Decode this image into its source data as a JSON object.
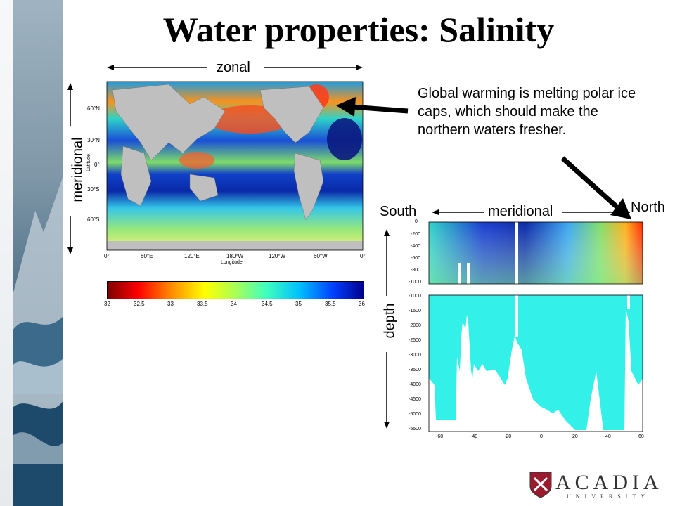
{
  "slide": {
    "title": "Water properties: Salinity",
    "annotation": "Global warming is melting polar ice caps, which should make the northern waters fresher."
  },
  "map": {
    "zonal_label": "zonal",
    "meridional_label": "meridional",
    "lat_axis_label": "Latitude",
    "lon_axis_label": "Longitude",
    "lat_ticks": [
      "60°N",
      "30°N",
      "0°",
      "30°S",
      "60°S"
    ],
    "lon_ticks": [
      "0°",
      "60°E",
      "120°E",
      "180°W",
      "120°W",
      "60°W",
      "0°"
    ]
  },
  "colorbar": {
    "ticks": [
      "32",
      "32.5",
      "33",
      "33.5",
      "34",
      "34.5",
      "35",
      "35.5",
      "36"
    ],
    "colors": [
      "#7f0000",
      "#ff0000",
      "#ff8c00",
      "#ffff00",
      "#a8ff57",
      "#3fffbf",
      "#00bfff",
      "#0040ff",
      "#00008f"
    ]
  },
  "section": {
    "south_label": "South",
    "north_label": "North",
    "meridional_label": "meridional",
    "depth_label": "depth",
    "upper_y_ticks": [
      "0",
      "-200",
      "-400",
      "-600",
      "-800",
      "-1000"
    ],
    "lower_y_ticks": [
      "-1000",
      "-1500",
      "-2000",
      "-2500",
      "-3000",
      "-3500",
      "-4000",
      "-4500",
      "-5000",
      "-5500"
    ],
    "x_ticks": [
      "-60",
      "-40",
      "-20",
      "0",
      "20",
      "40",
      "60"
    ]
  },
  "logo": {
    "name": "ACADIA",
    "subtitle": "UNIVERSITY"
  }
}
